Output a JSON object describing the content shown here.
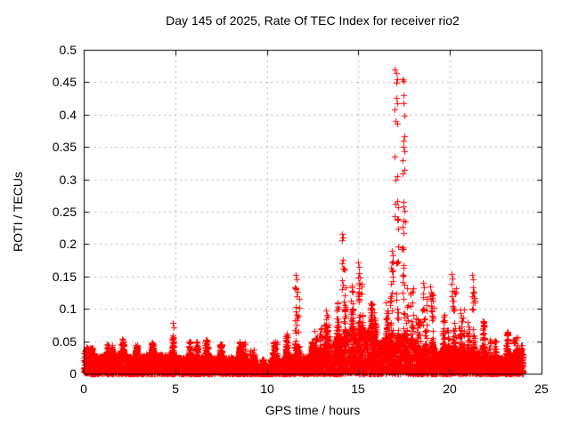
{
  "chart": {
    "title": "Day 145 of 2025, Rate Of TEC Index for receiver rio2",
    "xlabel": "GPS time / hours",
    "ylabel": "ROTI / TECUs",
    "marker_color": "#ff0000",
    "grid_color": "#b5b5b5",
    "axis_color": "#000000",
    "background_color": "#ffffff"
  },
  "chart_data": {
    "type": "scatter",
    "title": "Day 145 of 2025, Rate Of TEC Index for receiver rio2",
    "xlabel": "GPS time / hours",
    "ylabel": "ROTI / TECUs",
    "xlim": [
      0,
      25
    ],
    "ylim": [
      0,
      0.5
    ],
    "xticks": [
      0,
      5,
      10,
      15,
      20,
      25
    ],
    "xtick_labels": [
      "0",
      "5",
      "10",
      "15",
      "20",
      "25"
    ],
    "yticks": [
      0,
      0.05,
      0.1,
      0.15,
      0.2,
      0.25,
      0.3,
      0.35,
      0.4,
      0.45,
      0.5
    ],
    "ytick_labels": [
      "0",
      "0.05",
      "0.1",
      "0.15",
      "0.2",
      "0.25",
      "0.3",
      "0.35",
      "0.4",
      "0.45",
      "0.5"
    ],
    "grid": true,
    "legend": "none",
    "marker": "plus",
    "series_color": "#ff0000",
    "data_time_range_hours": [
      0,
      24
    ],
    "seed": 1457,
    "envelope": [
      [
        0.0,
        0.3,
        0.035,
        0.045
      ],
      [
        0.3,
        1.0,
        0.028,
        0.045
      ],
      [
        1.0,
        1.8,
        0.03,
        0.05
      ],
      [
        1.8,
        2.3,
        0.032,
        0.058
      ],
      [
        2.3,
        3.4,
        0.028,
        0.048
      ],
      [
        3.4,
        4.4,
        0.03,
        0.052
      ],
      [
        4.4,
        5.0,
        0.03,
        0.078
      ],
      [
        5.0,
        6.4,
        0.025,
        0.055
      ],
      [
        6.4,
        7.0,
        0.027,
        0.057
      ],
      [
        7.0,
        8.0,
        0.025,
        0.05
      ],
      [
        8.0,
        8.9,
        0.026,
        0.057
      ],
      [
        8.9,
        9.5,
        0.02,
        0.04
      ],
      [
        9.5,
        10.15,
        0.013,
        0.025
      ],
      [
        10.15,
        10.9,
        0.022,
        0.055
      ],
      [
        10.9,
        11.5,
        0.028,
        0.07
      ],
      [
        11.5,
        11.8,
        0.04,
        0.15
      ],
      [
        11.8,
        12.6,
        0.028,
        0.055
      ],
      [
        12.6,
        13.1,
        0.035,
        0.08
      ],
      [
        13.1,
        13.6,
        0.045,
        0.1
      ],
      [
        13.6,
        14.0,
        0.055,
        0.12
      ],
      [
        14.0,
        14.3,
        0.055,
        0.216
      ],
      [
        14.3,
        14.9,
        0.065,
        0.15
      ],
      [
        14.9,
        15.25,
        0.07,
        0.17
      ],
      [
        15.25,
        15.8,
        0.07,
        0.125
      ],
      [
        15.8,
        16.3,
        0.05,
        0.105
      ],
      [
        16.3,
        16.7,
        0.055,
        0.13
      ],
      [
        16.7,
        17.0,
        0.06,
        0.19
      ],
      [
        17.0,
        17.3,
        0.06,
        0.47
      ],
      [
        17.3,
        17.6,
        0.06,
        0.455
      ],
      [
        17.6,
        18.1,
        0.05,
        0.145
      ],
      [
        18.1,
        18.45,
        0.04,
        0.1
      ],
      [
        18.45,
        18.75,
        0.04,
        0.14
      ],
      [
        18.75,
        19.2,
        0.04,
        0.135
      ],
      [
        19.2,
        19.75,
        0.035,
        0.1
      ],
      [
        19.75,
        20.05,
        0.03,
        0.08
      ],
      [
        20.05,
        20.35,
        0.04,
        0.155
      ],
      [
        20.35,
        20.85,
        0.038,
        0.11
      ],
      [
        20.85,
        21.15,
        0.033,
        0.09
      ],
      [
        21.15,
        21.45,
        0.04,
        0.154
      ],
      [
        21.45,
        22.1,
        0.033,
        0.09
      ],
      [
        22.1,
        22.6,
        0.025,
        0.06
      ],
      [
        22.6,
        23.3,
        0.025,
        0.07
      ],
      [
        23.3,
        23.75,
        0.028,
        0.065
      ],
      [
        23.75,
        24.0,
        0.03,
        0.05
      ]
    ],
    "outliers": [
      [
        16.98,
        0.47
      ],
      [
        17.05,
        0.464
      ],
      [
        17.1,
        0.455
      ],
      [
        17.07,
        0.449
      ],
      [
        16.98,
        0.408
      ],
      [
        17.0,
        0.39
      ],
      [
        16.98,
        0.335
      ],
      [
        17.0,
        0.3
      ],
      [
        17.02,
        0.262
      ],
      [
        16.99,
        0.243
      ],
      [
        17.43,
        0.455
      ],
      [
        17.48,
        0.452
      ],
      [
        17.45,
        0.43
      ],
      [
        17.46,
        0.418
      ],
      [
        17.45,
        0.36
      ],
      [
        17.46,
        0.35
      ],
      [
        17.45,
        0.265
      ],
      [
        17.48,
        0.258
      ],
      [
        17.44,
        0.236
      ],
      [
        17.42,
        0.227
      ],
      [
        17.4,
        0.195
      ],
      [
        17.47,
        0.192
      ],
      [
        14.12,
        0.216
      ],
      [
        14.17,
        0.21
      ],
      [
        14.1,
        0.206
      ],
      [
        14.15,
        0.176
      ],
      [
        14.12,
        0.17
      ],
      [
        14.16,
        0.162
      ],
      [
        14.1,
        0.144
      ],
      [
        14.14,
        0.138
      ],
      [
        14.12,
        0.13
      ],
      [
        15.0,
        0.172
      ],
      [
        15.05,
        0.165
      ],
      [
        15.02,
        0.155
      ],
      [
        15.0,
        0.148
      ],
      [
        15.04,
        0.14
      ],
      [
        15.02,
        0.132
      ],
      [
        15.0,
        0.122
      ],
      [
        15.03,
        0.114
      ],
      [
        11.6,
        0.152
      ],
      [
        11.64,
        0.146
      ],
      [
        11.6,
        0.131
      ],
      [
        11.65,
        0.126
      ],
      [
        11.62,
        0.119
      ],
      [
        11.6,
        0.096
      ],
      [
        11.63,
        0.09
      ],
      [
        11.61,
        0.083
      ],
      [
        11.64,
        0.075
      ],
      [
        16.82,
        0.19
      ],
      [
        16.87,
        0.183
      ],
      [
        16.85,
        0.172
      ],
      [
        16.83,
        0.158
      ],
      [
        16.88,
        0.15
      ],
      [
        18.52,
        0.14
      ],
      [
        18.57,
        0.133
      ],
      [
        18.55,
        0.124
      ],
      [
        18.53,
        0.118
      ],
      [
        18.92,
        0.134
      ],
      [
        18.97,
        0.126
      ],
      [
        18.94,
        0.119
      ],
      [
        18.96,
        0.112
      ],
      [
        20.1,
        0.154
      ],
      [
        20.14,
        0.147
      ],
      [
        20.11,
        0.139
      ],
      [
        20.13,
        0.128
      ],
      [
        20.1,
        0.12
      ],
      [
        20.15,
        0.112
      ],
      [
        20.12,
        0.104
      ],
      [
        21.22,
        0.153
      ],
      [
        21.27,
        0.146
      ],
      [
        21.24,
        0.133
      ],
      [
        21.22,
        0.12
      ],
      [
        21.26,
        0.11
      ],
      [
        21.23,
        0.1
      ],
      [
        4.86,
        0.078
      ],
      [
        4.9,
        0.071
      ],
      [
        13.22,
        0.098
      ],
      [
        13.27,
        0.091
      ]
    ]
  }
}
